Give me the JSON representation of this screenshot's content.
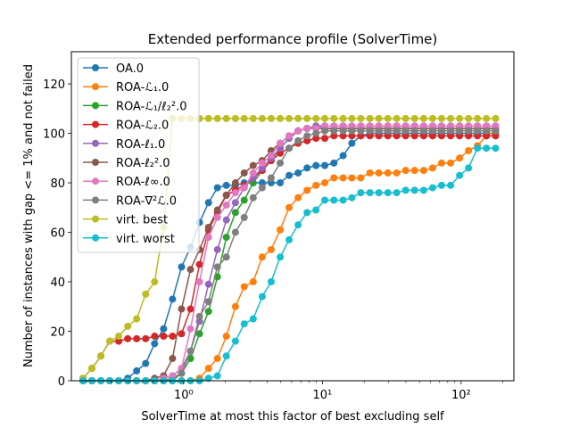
{
  "chart_data": {
    "type": "line",
    "title": "Extended performance profile (SolverTime)",
    "xlabel": "SolverTime at most this factor of best excluding self",
    "ylabel": "Number of instances with gap <= 1% and not failed",
    "xscale": "log",
    "xlim": [
      0.155,
      240
    ],
    "ylim": [
      0,
      133
    ],
    "x_ticks": [
      {
        "value": 1,
        "label": "10⁰"
      },
      {
        "value": 10,
        "label": "10¹"
      },
      {
        "value": 100,
        "label": "10²"
      }
    ],
    "y_ticks": [
      0,
      20,
      40,
      60,
      80,
      100,
      120
    ],
    "grid": false,
    "legend_position": "upper-left",
    "x": [
      0.188,
      0.218,
      0.253,
      0.293,
      0.34,
      0.395,
      0.458,
      0.532,
      0.617,
      0.716,
      0.831,
      0.965,
      1.12,
      1.3,
      1.51,
      1.75,
      2.03,
      2.36,
      2.73,
      3.17,
      3.68,
      4.27,
      4.96,
      5.75,
      6.68,
      7.75,
      8.99,
      10.4,
      12.1,
      14.1,
      16.3,
      18.9,
      22.0,
      25.5,
      29.6,
      34.3,
      39.8,
      46.2,
      53.7,
      62.3,
      72.3,
      83.9,
      97.4,
      113.0,
      131.0,
      152.0,
      177.0
    ],
    "series": [
      {
        "name": "OA.0",
        "color": "#1f77b4",
        "values": [
          0,
          0,
          0,
          0,
          0,
          1,
          4,
          7,
          15,
          21,
          33,
          46,
          54,
          64,
          72,
          78,
          79,
          79,
          80,
          80,
          80,
          80,
          80,
          83,
          84,
          86,
          87,
          87,
          88,
          91,
          96,
          99,
          100,
          100,
          100,
          100,
          100,
          100,
          100,
          100,
          100,
          100,
          100,
          100,
          100,
          100,
          100
        ]
      },
      {
        "name": "ROA-ℒ₁.0",
        "color": "#ff7f0e",
        "values": [
          0,
          0,
          0,
          0,
          0,
          0,
          0,
          0,
          0,
          0,
          0,
          0,
          0,
          1,
          5,
          9,
          18,
          30,
          38,
          40,
          50,
          53,
          61,
          70,
          74,
          77,
          79,
          80,
          82,
          82,
          82,
          82,
          84,
          84,
          84,
          84,
          85,
          85,
          85,
          86,
          88,
          88,
          90,
          93,
          95,
          99,
          101
        ]
      },
      {
        "name": "ROA-ℒ₁/ℓ₂².0",
        "color": "#2ca02c",
        "values": [
          0,
          0,
          0,
          0,
          0,
          0,
          0,
          0,
          0,
          0,
          1,
          3,
          9,
          19,
          28,
          42,
          58,
          68,
          73,
          80,
          85,
          89,
          94,
          98,
          101,
          102,
          102,
          102,
          102,
          102,
          102,
          102,
          102,
          102,
          102,
          102,
          102,
          102,
          102,
          102,
          102,
          102,
          102,
          102,
          102,
          102,
          102
        ]
      },
      {
        "name": "ROA-ℒ₂.0",
        "color": "#d62728",
        "values": [
          1,
          5,
          10,
          16,
          16,
          17,
          17,
          17,
          18,
          18,
          18,
          19,
          29,
          47,
          61,
          68,
          75,
          77,
          79,
          82,
          85,
          89,
          92,
          94,
          96,
          97,
          98,
          98,
          99,
          99,
          99,
          99,
          99,
          99,
          99,
          99,
          99,
          99,
          99,
          99,
          99,
          99,
          99,
          99,
          99,
          99,
          99
        ]
      },
      {
        "name": "ROA-ℓ₁.0",
        "color": "#9467bd",
        "values": [
          0,
          0,
          0,
          0,
          0,
          0,
          0,
          0,
          0,
          1,
          2,
          5,
          12,
          24,
          39,
          53,
          65,
          72,
          78,
          82,
          86,
          90,
          94,
          98,
          101,
          102,
          103,
          103,
          103,
          103,
          103,
          103,
          103,
          103,
          103,
          103,
          103,
          103,
          103,
          103,
          103,
          103,
          103,
          103,
          103,
          103,
          103
        ]
      },
      {
        "name": "ROA-ℓ₂².0",
        "color": "#8c564b",
        "values": [
          0,
          0,
          0,
          0,
          0,
          0,
          0,
          0,
          1,
          2,
          9,
          29,
          45,
          53,
          62,
          69,
          75,
          80,
          84,
          87,
          89,
          93,
          96,
          99,
          101,
          102,
          102,
          102,
          102,
          102,
          102,
          102,
          102,
          102,
          102,
          102,
          102,
          102,
          102,
          102,
          102,
          102,
          102,
          102,
          102,
          102,
          102
        ]
      },
      {
        "name": "ROA-ℓ∞.0",
        "color": "#e377c2",
        "values": [
          0,
          0,
          0,
          0,
          0,
          0,
          0,
          0,
          0,
          1,
          2,
          5,
          21,
          40,
          58,
          66,
          71,
          76,
          78,
          84,
          88,
          91,
          96,
          99,
          101,
          102,
          102,
          103,
          103,
          103,
          103,
          103,
          103,
          103,
          103,
          103,
          103,
          103,
          103,
          103,
          103,
          103,
          103,
          103,
          103,
          103,
          103
        ]
      },
      {
        "name": "ROA-∇²ℒ.0",
        "color": "#7f7f7f",
        "values": [
          0,
          0,
          0,
          0,
          0,
          0,
          0,
          0,
          0,
          0,
          0,
          3,
          12,
          26,
          32,
          46,
          50,
          60,
          66,
          74,
          78,
          82,
          88,
          94,
          97,
          99,
          100,
          101,
          101,
          101,
          101,
          101,
          101,
          101,
          101,
          101,
          101,
          101,
          101,
          101,
          101,
          101,
          101,
          101,
          101,
          101,
          101
        ]
      },
      {
        "name": "virt. best",
        "color": "#bcbd22",
        "values": [
          1,
          5,
          10,
          16,
          18,
          22,
          25,
          35,
          40,
          62,
          106,
          106,
          106,
          106,
          106,
          106,
          106,
          106,
          106,
          106,
          106,
          106,
          106,
          106,
          106,
          106,
          106,
          106,
          106,
          106,
          106,
          106,
          106,
          106,
          106,
          106,
          106,
          106,
          106,
          106,
          106,
          106,
          106,
          106,
          106,
          106,
          106
        ]
      },
      {
        "name": "virt. worst",
        "color": "#17becf",
        "values": [
          0,
          0,
          0,
          0,
          0,
          0,
          0,
          0,
          0,
          0,
          0,
          0,
          0,
          0,
          1,
          2,
          10,
          16,
          23,
          25,
          34,
          40,
          50,
          57,
          63,
          68,
          69,
          73,
          73,
          73,
          74,
          76,
          76,
          76,
          76,
          76,
          77,
          77,
          77,
          78,
          79,
          79,
          83,
          86,
          94,
          94,
          94
        ]
      }
    ]
  }
}
